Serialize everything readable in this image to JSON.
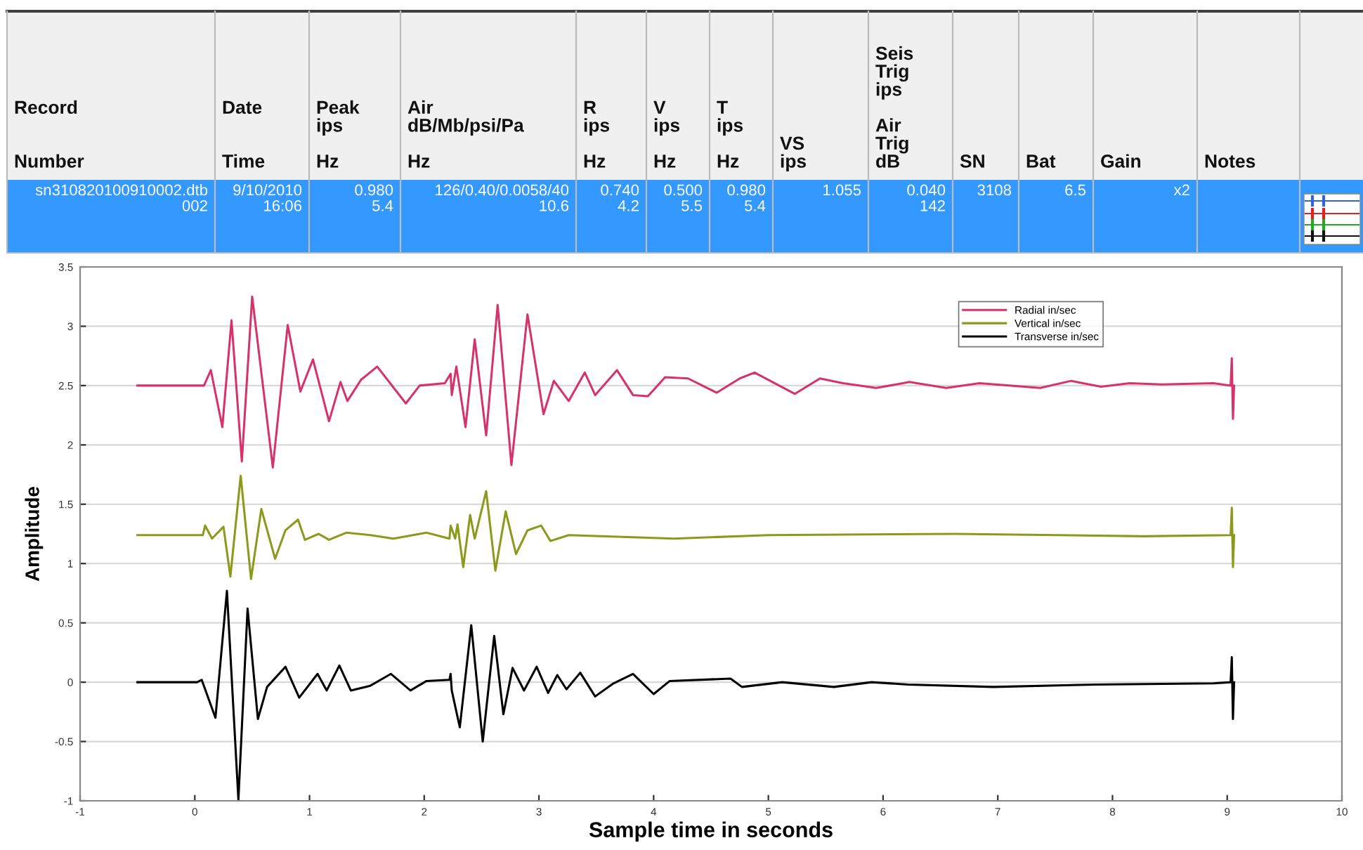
{
  "chart_data": [
    {
      "type": "other",
      "categories": [
        "Record\n\n\nNumber",
        "Date\n\n\nTime",
        "Peak\nips\n\nHz",
        "Air\ndB/Mb/psi/Pa\n\nHz",
        "R\nips\n\nHz",
        "V\nips\n\nHz",
        "T\nips\n\nHz",
        "VS\nips",
        "Seis\nTrig\nips\n\nAir\nTrig\ndB",
        "SN",
        "Bat",
        "Gain",
        "Notes",
        null
      ],
      "annotations": [
        "sn310820100910002.dtb\n002",
        "9/10/2010\n16:06",
        "0.980\n5.4",
        "126/0.40/0.0058/40\n10.6",
        "0.740\n4.2",
        "0.500\n5.5",
        "0.980\n5.4",
        "1.055",
        "0.040\n142",
        "3108",
        "6.5",
        "x2"
      ]
    },
    {
      "type": "line",
      "xlabel": "Sample time in seconds",
      "ylabel": "Amplitude",
      "xlim": [
        -1,
        10
      ],
      "ylim": [
        -1,
        3.5
      ],
      "xticks": [
        -1,
        0,
        1,
        2,
        3,
        4,
        5,
        6,
        7,
        8,
        9,
        10
      ],
      "yticks": [
        -1,
        -0.5,
        0,
        0.5,
        1,
        1.5,
        2,
        2.5,
        3,
        3.5
      ],
      "grid": "y",
      "legend": "top right",
      "series": [
        {
          "name": "Radial in/sec",
          "color": "#d6336c",
          "x": [
            -0.5,
            0.08,
            0.14,
            0.24,
            0.32,
            0.41,
            0.5,
            0.68,
            0.81,
            0.92,
            1.03,
            1.17,
            1.27,
            1.33,
            1.45,
            1.59,
            1.84,
            1.96,
            2.18,
            2.23,
            2.24,
            2.28,
            2.36,
            2.44,
            2.54,
            2.64,
            2.76,
            2.9,
            3.04,
            3.13,
            3.26,
            3.4,
            3.49,
            3.68,
            3.82,
            3.95,
            4.1,
            4.3,
            4.55,
            4.75,
            4.88,
            5.23,
            5.45,
            5.65,
            5.94,
            6.23,
            6.55,
            6.84,
            7.37,
            7.64,
            7.9,
            8.15,
            8.43,
            8.88,
            9.03,
            9.04,
            9.05,
            9.06
          ],
          "values": [
            2.5,
            2.5,
            2.63,
            2.15,
            3.05,
            1.86,
            3.25,
            1.81,
            3.01,
            2.45,
            2.72,
            2.2,
            2.53,
            2.37,
            2.55,
            2.66,
            2.35,
            2.5,
            2.52,
            2.6,
            2.42,
            2.66,
            2.15,
            2.89,
            2.08,
            3.18,
            1.83,
            3.1,
            2.26,
            2.54,
            2.37,
            2.61,
            2.42,
            2.63,
            2.42,
            2.41,
            2.57,
            2.56,
            2.44,
            2.56,
            2.61,
            2.43,
            2.56,
            2.52,
            2.48,
            2.53,
            2.48,
            2.52,
            2.48,
            2.54,
            2.49,
            2.52,
            2.51,
            2.52,
            2.5,
            2.73,
            2.22,
            2.5
          ]
        },
        {
          "name": "Vertical in/sec",
          "color": "#8c9a1c",
          "x": [
            -0.5,
            0.07,
            0.09,
            0.15,
            0.25,
            0.31,
            0.4,
            0.49,
            0.58,
            0.7,
            0.79,
            0.9,
            0.96,
            1.08,
            1.17,
            1.32,
            1.53,
            1.73,
            2.02,
            2.22,
            2.23,
            2.27,
            2.29,
            2.34,
            2.4,
            2.44,
            2.54,
            2.62,
            2.71,
            2.8,
            2.9,
            3.02,
            3.1,
            3.26,
            4.18,
            5.0,
            6.63,
            8.27,
            9.03,
            9.04,
            9.05,
            9.06
          ],
          "values": [
            1.24,
            1.24,
            1.32,
            1.21,
            1.31,
            0.89,
            1.74,
            0.87,
            1.46,
            1.04,
            1.28,
            1.37,
            1.2,
            1.25,
            1.2,
            1.26,
            1.24,
            1.21,
            1.26,
            1.21,
            1.32,
            1.21,
            1.33,
            0.97,
            1.41,
            1.21,
            1.61,
            0.94,
            1.44,
            1.08,
            1.28,
            1.32,
            1.19,
            1.24,
            1.21,
            1.24,
            1.25,
            1.23,
            1.24,
            1.47,
            0.97,
            1.24
          ]
        },
        {
          "name": "Transverse in/sec",
          "color": "#000000",
          "x": [
            -0.5,
            0.02,
            0.06,
            0.18,
            0.28,
            0.38,
            0.46,
            0.55,
            0.63,
            0.79,
            0.91,
            1.07,
            1.15,
            1.26,
            1.36,
            1.53,
            1.71,
            1.88,
            2.02,
            2.22,
            2.23,
            2.24,
            2.31,
            2.41,
            2.51,
            2.61,
            2.69,
            2.77,
            2.87,
            2.98,
            3.08,
            3.16,
            3.24,
            3.36,
            3.49,
            3.65,
            3.82,
            4.0,
            4.14,
            4.67,
            4.77,
            5.12,
            5.57,
            5.9,
            6.22,
            6.96,
            7.86,
            8.88,
            9.03,
            9.04,
            9.05,
            9.06
          ],
          "values": [
            0,
            0,
            0.02,
            -0.3,
            0.77,
            -0.99,
            0.62,
            -0.31,
            -0.04,
            0.13,
            -0.13,
            0.07,
            -0.07,
            0.14,
            -0.07,
            -0.03,
            0.07,
            -0.07,
            0.01,
            0.02,
            0.07,
            -0.07,
            -0.38,
            0.48,
            -0.5,
            0.39,
            -0.27,
            0.12,
            -0.07,
            0.13,
            -0.09,
            0.06,
            -0.06,
            0.08,
            -0.12,
            -0.01,
            0.07,
            -0.1,
            0.01,
            0.03,
            -0.04,
            0,
            -0.04,
            0,
            -0.02,
            -0.04,
            -0.02,
            -0.01,
            0,
            0.21,
            -0.31,
            0
          ]
        }
      ]
    }
  ]
}
